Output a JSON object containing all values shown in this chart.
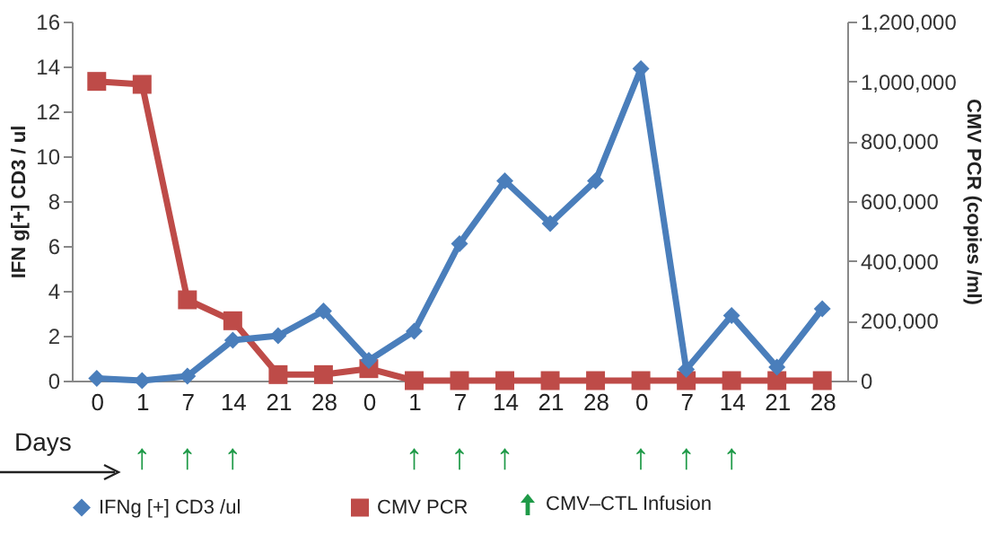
{
  "chart_data": {
    "type": "line",
    "categories": [
      "0",
      "1",
      "7",
      "14",
      "21",
      "28",
      "0",
      "1",
      "7",
      "14",
      "21",
      "28",
      "0",
      "7",
      "14",
      "21",
      "28"
    ],
    "series": [
      {
        "name": "IFNg [+] CD3 /ul",
        "color": "#4a7ebb",
        "marker": "diamond",
        "axis": "y",
        "values": [
          0.1,
          0,
          0.2,
          1.8,
          2.0,
          3.1,
          0.9,
          2.2,
          6.1,
          8.9,
          7.0,
          8.9,
          13.9,
          0.5,
          2.9,
          0.6,
          3.2
        ]
      },
      {
        "name": "CMV PCR",
        "color": "#be4b48",
        "marker": "square",
        "axis": "y2",
        "values": [
          1000000,
          990000,
          270000,
          200000,
          20000,
          20000,
          40000,
          0,
          0,
          0,
          0,
          0,
          0,
          0,
          0,
          0,
          0
        ]
      }
    ],
    "ylabel": "IFN g[+] CD3 / ul",
    "y2label": "CMV PCR (copies /ml)",
    "ylim": [
      0,
      16
    ],
    "yticks": [
      0,
      2,
      4,
      6,
      8,
      10,
      12,
      14,
      16
    ],
    "y2lim": [
      0,
      1200000
    ],
    "y2ticks": [
      0,
      {
        "value": 200000,
        "label": "200,000"
      },
      {
        "value": 400000,
        "label": "400,000"
      },
      {
        "value": 600000,
        "label": "600,000"
      },
      {
        "value": 800000,
        "label": "800,000"
      },
      {
        "value": 1000000,
        "label": "1,000,000"
      },
      {
        "value": 1200000,
        "label": "1,200,000"
      }
    ],
    "annotations": [
      "Days",
      "CMV–CTL Infusion",
      "↑",
      "↑",
      "↑",
      "↑",
      "↑",
      "↑",
      "↑",
      "↑",
      "↑"
    ],
    "legend": "bottom"
  }
}
